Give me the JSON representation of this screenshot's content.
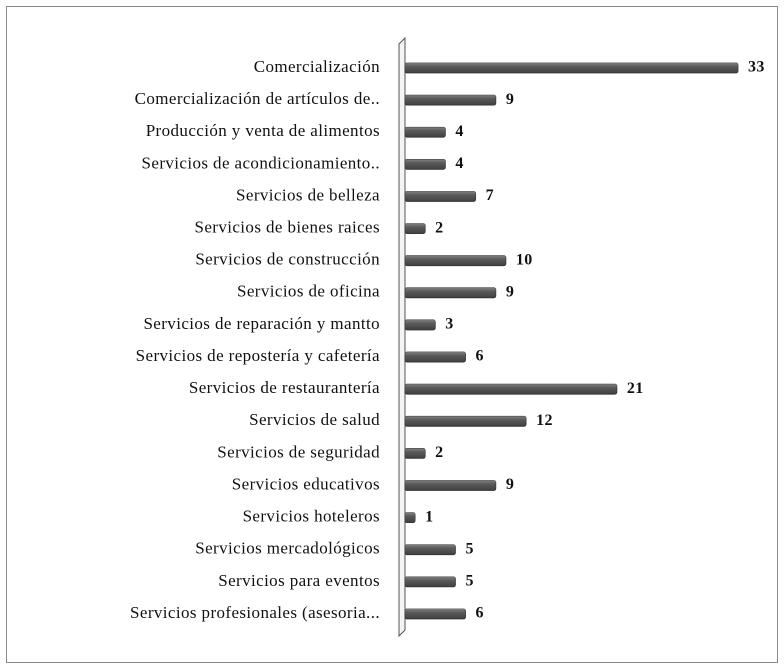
{
  "chart_data": {
    "type": "bar",
    "orientation": "horizontal",
    "categories": [
      "Comercialización",
      "Comercialización de artículos de..",
      "Producción y venta de alimentos",
      "Servicios de acondicionamiento..",
      "Servicios de belleza",
      "Servicios de bienes raices",
      "Servicios de construcción",
      "Servicios de oficina",
      "Servicios de reparación y mantto",
      "Servicios de repostería y cafetería",
      "Servicios de restaurantería",
      "Servicios de salud",
      "Servicios de seguridad",
      "Servicios educativos",
      "Servicios hoteleros",
      "Servicios mercadológicos",
      "Servicios para eventos",
      "Servicios profesionales (asesoria..."
    ],
    "values": [
      33,
      9,
      4,
      4,
      7,
      2,
      10,
      9,
      3,
      6,
      21,
      12,
      2,
      9,
      1,
      5,
      5,
      6
    ],
    "color": "#5a5a5a"
  }
}
